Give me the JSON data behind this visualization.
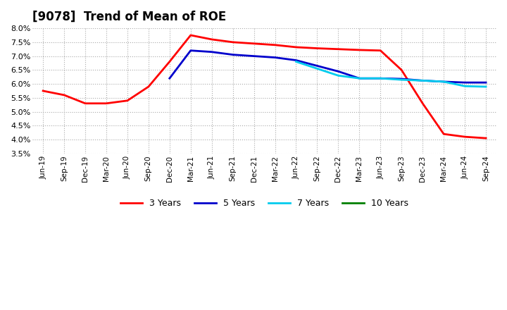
{
  "title": "[9078]  Trend of Mean of ROE",
  "ylim": [
    3.5,
    8.0
  ],
  "yticks": [
    3.5,
    4.0,
    4.5,
    5.0,
    5.5,
    6.0,
    6.5,
    7.0,
    7.5,
    8.0
  ],
  "x_labels": [
    "Jun-19",
    "Sep-19",
    "Dec-19",
    "Mar-20",
    "Jun-20",
    "Sep-20",
    "Dec-20",
    "Mar-21",
    "Jun-21",
    "Sep-21",
    "Dec-21",
    "Mar-22",
    "Jun-22",
    "Sep-22",
    "Dec-22",
    "Mar-23",
    "Jun-23",
    "Sep-23",
    "Dec-23",
    "Mar-24",
    "Jun-24",
    "Sep-24"
  ],
  "series_3y": [
    5.75,
    5.6,
    5.3,
    5.3,
    5.4,
    5.9,
    6.8,
    7.75,
    7.6,
    7.5,
    7.45,
    7.4,
    7.32,
    7.28,
    7.25,
    7.22,
    7.2,
    6.5,
    5.3,
    4.2,
    4.1,
    4.05
  ],
  "series_5y": [
    null,
    null,
    null,
    null,
    null,
    null,
    6.2,
    7.2,
    7.15,
    7.05,
    7.0,
    6.95,
    6.85,
    6.65,
    6.45,
    6.2,
    6.2,
    6.18,
    6.12,
    6.08,
    6.05,
    6.05
  ],
  "series_7y": [
    null,
    null,
    null,
    null,
    null,
    null,
    null,
    null,
    null,
    null,
    null,
    null,
    6.8,
    6.55,
    6.3,
    6.2,
    6.2,
    6.15,
    6.12,
    6.08,
    5.92,
    5.9
  ],
  "series_10y": [
    null,
    null,
    null,
    null,
    null,
    null,
    null,
    null,
    null,
    null,
    null,
    null,
    null,
    null,
    null,
    null,
    null,
    null,
    null,
    null,
    null,
    null
  ],
  "color_3y": "#ff0000",
  "color_5y": "#0000cc",
  "color_7y": "#00ccee",
  "color_10y": "#008000",
  "background_color": "#ffffff",
  "plot_bg_color": "#ffffff",
  "grid_color": "#aaaaaa",
  "title_fontsize": 12,
  "title_fontweight": "bold",
  "legend_labels": [
    "3 Years",
    "5 Years",
    "7 Years",
    "10 Years"
  ]
}
